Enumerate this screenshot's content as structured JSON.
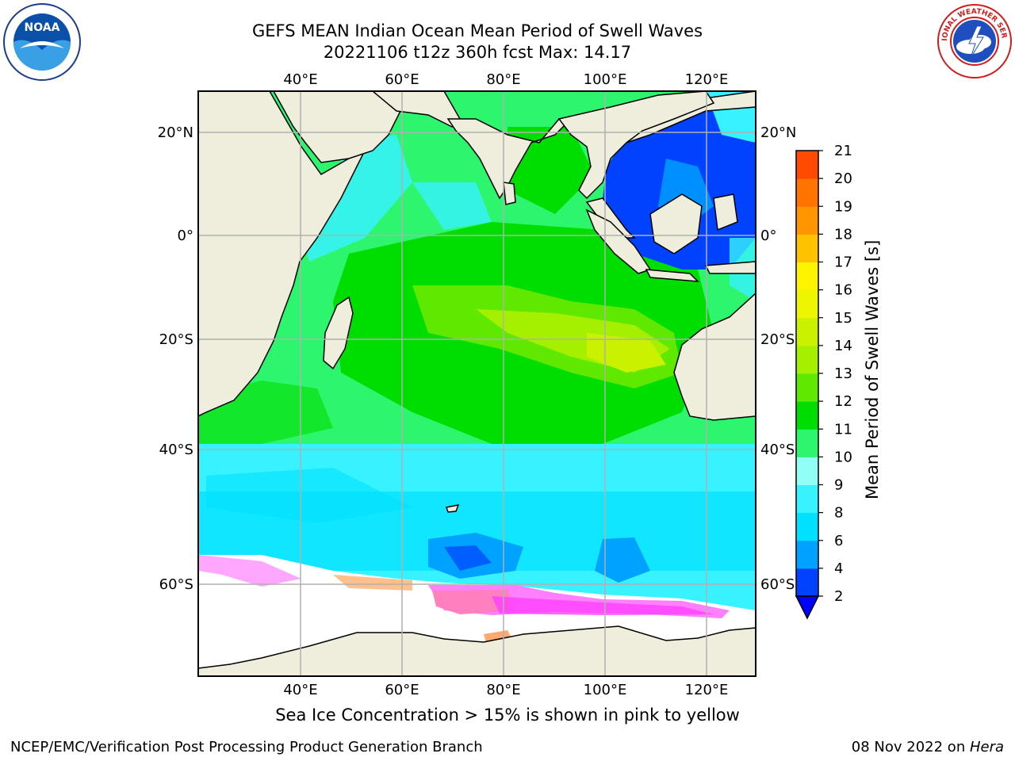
{
  "header": {
    "title_line1": "GEFS MEAN Indian Ocean Mean Period of Swell Waves",
    "title_line2": "20221106 t12z 360h fcst   Max: 14.17"
  },
  "logos": {
    "left": {
      "name": "noaa-logo",
      "text": "NOAA"
    },
    "right": {
      "name": "national-weather-service-logo",
      "text": "NATIONAL WEATHER SERVICE"
    }
  },
  "map": {
    "lon_ticks": [
      "40°E",
      "60°E",
      "80°E",
      "100°E",
      "120°E"
    ],
    "lat_ticks": [
      "20°N",
      "0°",
      "20°S",
      "40°S",
      "60°S"
    ],
    "land_color": "#efeedc",
    "ocean_missing_color": "#ffffff"
  },
  "colorbar": {
    "label": "Mean Period of Swell Waves [s]",
    "ticks": [
      "2",
      "4",
      "6",
      "8",
      "9",
      "10",
      "11",
      "12",
      "13",
      "14",
      "15",
      "16",
      "17",
      "18",
      "19",
      "20",
      "21"
    ],
    "colors": [
      "#0042ff",
      "#00a2ff",
      "#00e1ff",
      "#37f2ff",
      "#92fff4",
      "#2ef56e",
      "#00dd00",
      "#5fe800",
      "#a5ef00",
      "#caf200",
      "#eef500",
      "#fff400",
      "#ffc200",
      "#ff9500",
      "#ff7300",
      "#ff4a00",
      "#ff1b00",
      "#ff0000"
    ],
    "under_color": "#0000ff"
  },
  "caption": "Sea Ice Concentration > 15% is shown in pink to yellow",
  "footer": {
    "left": "NCEP/EMC/Verification Post Processing Product Generation Branch",
    "date": "08 Nov 2022 on ",
    "host": "Hera"
  }
}
